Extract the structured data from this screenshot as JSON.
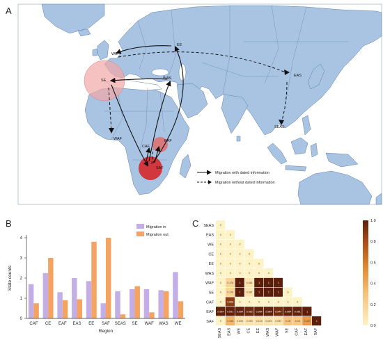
{
  "panels": {
    "a": "A",
    "b": "B",
    "c": "C"
  },
  "map": {
    "regions": [
      {
        "code": "WE"
      },
      {
        "code": "EE"
      },
      {
        "code": "SE"
      },
      {
        "code": "WAS"
      },
      {
        "code": "EAS"
      },
      {
        "code": "SEAS"
      },
      {
        "code": "WAF"
      },
      {
        "code": "CAF"
      },
      {
        "code": "EAF"
      },
      {
        "code": "SAF"
      }
    ],
    "legend": {
      "dated": "Migration with dated information",
      "undated": "Migration without dated information"
    },
    "colors": {
      "ocean": "#ffffff",
      "land": "#a9c4e3",
      "border": "#5c7ea8",
      "bubble_light": "#f2a6a6",
      "bubble_dark": "#d81e1e"
    }
  },
  "chart_data": [
    {
      "type": "bar",
      "categories": [
        "CAF",
        "CE",
        "EAF",
        "EAS",
        "EE",
        "SAF",
        "SEAS",
        "SE",
        "WAF",
        "WAS",
        "WE"
      ],
      "series": [
        {
          "name": "Migration in",
          "color": "#c3aee6",
          "values": [
            1.7,
            2.25,
            1.3,
            2.0,
            1.85,
            0.75,
            1.35,
            1.45,
            1.45,
            1.4,
            2.3
          ]
        },
        {
          "name": "Migration out",
          "color": "#f4a361",
          "values": [
            0.75,
            3.0,
            0.9,
            0.95,
            3.8,
            4.0,
            0.2,
            1.6,
            0.3,
            1.35,
            0.85
          ]
        }
      ],
      "xlabel": "Region",
      "ylabel": "State counts",
      "ylim": [
        0,
        4
      ],
      "yticks": [
        0,
        1,
        2,
        3,
        4
      ],
      "legend_position": "top-right"
    },
    {
      "type": "heatmap",
      "labels": [
        "SEAS",
        "EAS",
        "WE",
        "CE",
        "EE",
        "WAS",
        "WAF",
        "SE",
        "CAF",
        "EAF",
        "SAF"
      ],
      "cells": [
        [
          "0"
        ],
        [
          "0",
          "0"
        ],
        [
          "0",
          "0",
          "0"
        ],
        [
          "0",
          "0",
          "0",
          "0"
        ],
        [
          "0",
          "0",
          "0",
          "0",
          "0"
        ],
        [
          "0",
          "0",
          "0",
          "0",
          "0",
          "0"
        ],
        [
          "0",
          "0.176",
          "1",
          "0.081",
          "1",
          "1",
          "1"
        ],
        [
          "0",
          "0.176",
          "1",
          "0.081",
          "1",
          "1",
          "1",
          "0"
        ],
        [
          "0",
          "0.868",
          "0",
          "0",
          "0",
          "0",
          "0",
          "0",
          "0"
        ],
        [
          "0.984",
          "0.991",
          "0.984",
          "0.962",
          "0.984",
          "0.984",
          "0.944",
          "0.984",
          "0.991",
          "1"
        ],
        [
          "0",
          "0.348",
          "0.093",
          "0.093",
          "0.103",
          "0.093",
          "0.093",
          "0.28",
          "0.26",
          "0.463",
          "1"
        ]
      ],
      "values": [
        [
          0
        ],
        [
          0,
          0
        ],
        [
          0,
          0,
          0
        ],
        [
          0,
          0,
          0,
          0
        ],
        [
          0,
          0,
          0,
          0,
          0
        ],
        [
          0,
          0,
          0,
          0,
          0,
          0
        ],
        [
          0,
          0.176,
          1,
          0.081,
          1,
          1,
          1
        ],
        [
          0,
          0.176,
          1,
          0.081,
          1,
          1,
          1,
          0
        ],
        [
          0,
          0.868,
          0,
          0,
          0,
          0,
          0,
          0,
          0
        ],
        [
          0.984,
          0.991,
          0.984,
          0.962,
          0.984,
          0.984,
          0.944,
          0.984,
          0.991,
          1
        ],
        [
          0,
          0.348,
          0.093,
          0.093,
          0.103,
          0.093,
          0.093,
          0.28,
          0.26,
          0.463,
          1
        ]
      ],
      "colorbar": {
        "min": 0,
        "max": 1,
        "ticks": [
          "0.0",
          "0.2",
          "0.4",
          "0.6",
          "0.8",
          "1.0"
        ]
      },
      "colorscale": [
        "#fdf3c6",
        "#f8c07a",
        "#e08a35",
        "#a84d17",
        "#5c1f0b"
      ]
    }
  ]
}
